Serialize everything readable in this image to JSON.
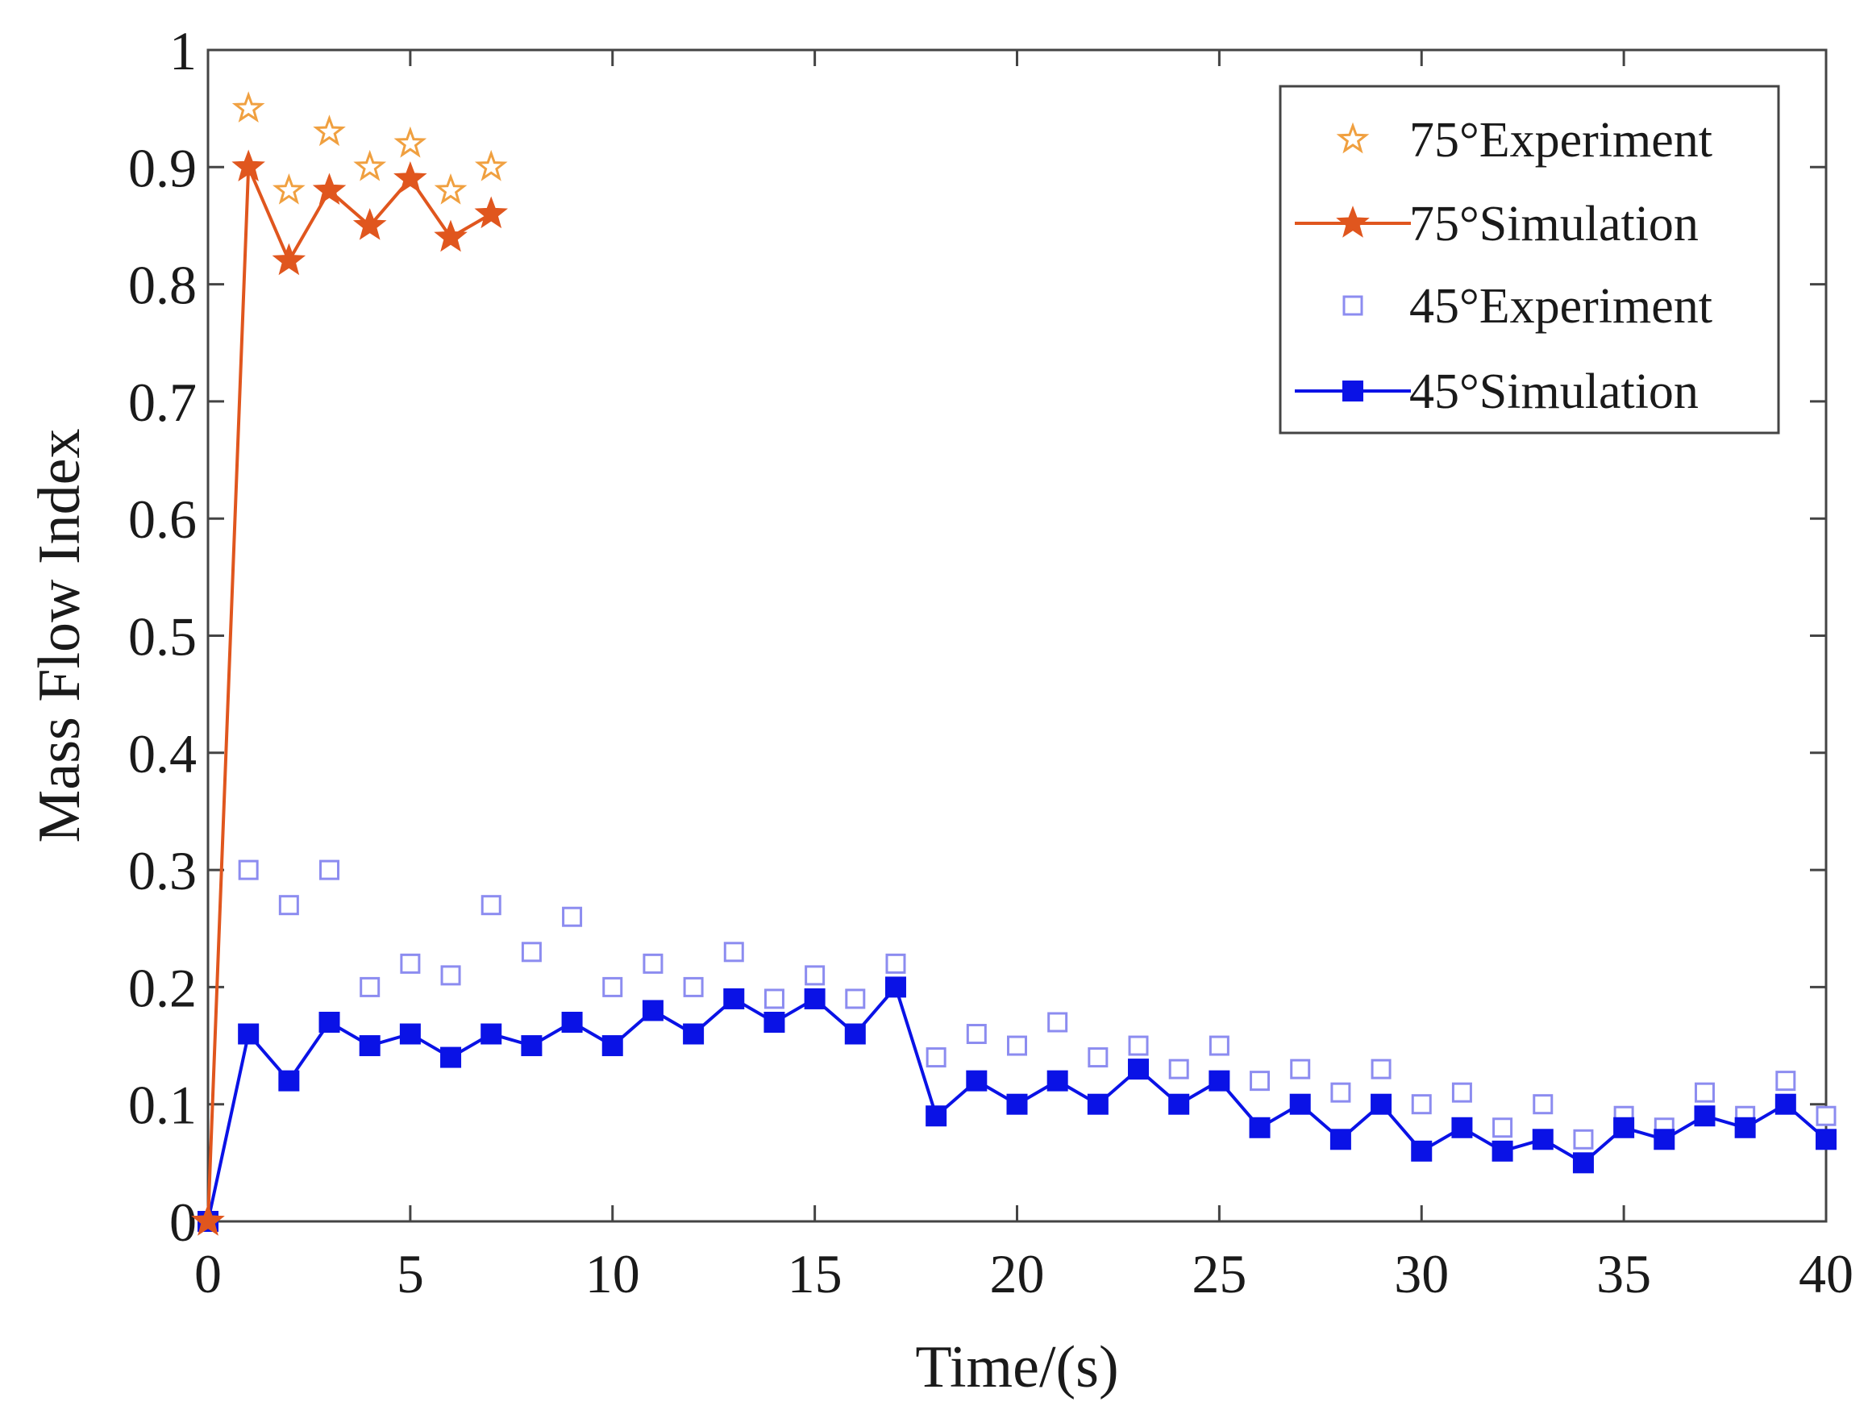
{
  "chart_data": {
    "type": "line",
    "title": "",
    "xlabel": "Time/(s)",
    "ylabel": "Mass Flow Index",
    "xlim": [
      0,
      40
    ],
    "ylim": [
      0,
      1
    ],
    "xticks": [
      0,
      5,
      10,
      15,
      20,
      25,
      30,
      35,
      40
    ],
    "yticks": [
      0,
      0.1,
      0.2,
      0.3,
      0.4,
      0.5,
      0.6,
      0.7,
      0.8,
      0.9,
      1
    ],
    "ytick_labels": [
      "0",
      "0.1",
      "0.2",
      "0.3",
      "0.4",
      "0.5",
      "0.6",
      "0.7",
      "0.8",
      "0.9",
      "1"
    ],
    "grid": false,
    "legend_position": "top-right",
    "series": [
      {
        "name": "75°Experiment",
        "style": "markers",
        "marker": "star-open",
        "color": "#f0a040",
        "x": [
          0,
          1,
          2,
          3,
          4,
          5,
          6,
          7
        ],
        "y": [
          0,
          0.95,
          0.88,
          0.93,
          0.9,
          0.92,
          0.88,
          0.9
        ]
      },
      {
        "name": "75°Simulation",
        "style": "line-markers",
        "marker": "star-filled",
        "color": "#e0561e",
        "x": [
          0,
          1,
          2,
          3,
          4,
          5,
          6,
          7
        ],
        "y": [
          0,
          0.9,
          0.82,
          0.88,
          0.85,
          0.89,
          0.84,
          0.86
        ]
      },
      {
        "name": "45°Experiment",
        "style": "markers",
        "marker": "square-open",
        "color": "#8c8cf0",
        "x": [
          0,
          1,
          2,
          3,
          4,
          5,
          6,
          7,
          8,
          9,
          10,
          11,
          12,
          13,
          14,
          15,
          16,
          17,
          18,
          19,
          20,
          21,
          22,
          23,
          24,
          25,
          26,
          27,
          28,
          29,
          30,
          31,
          32,
          33,
          34,
          35,
          36,
          37,
          38,
          39,
          40
        ],
        "y": [
          0,
          0.3,
          0.27,
          0.3,
          0.2,
          0.22,
          0.21,
          0.27,
          0.23,
          0.26,
          0.2,
          0.22,
          0.2,
          0.23,
          0.19,
          0.21,
          0.19,
          0.22,
          0.14,
          0.16,
          0.15,
          0.17,
          0.14,
          0.15,
          0.13,
          0.15,
          0.12,
          0.13,
          0.11,
          0.13,
          0.1,
          0.11,
          0.08,
          0.1,
          0.07,
          0.09,
          0.08,
          0.11,
          0.09,
          0.12,
          0.09
        ]
      },
      {
        "name": "45°Simulation",
        "style": "line-markers",
        "marker": "square-filled",
        "color": "#0a12e6",
        "x": [
          0,
          1,
          2,
          3,
          4,
          5,
          6,
          7,
          8,
          9,
          10,
          11,
          12,
          13,
          14,
          15,
          16,
          17,
          18,
          19,
          20,
          21,
          22,
          23,
          24,
          25,
          26,
          27,
          28,
          29,
          30,
          31,
          32,
          33,
          34,
          35,
          36,
          37,
          38,
          39,
          40
        ],
        "y": [
          0,
          0.16,
          0.12,
          0.17,
          0.15,
          0.16,
          0.14,
          0.16,
          0.15,
          0.17,
          0.15,
          0.18,
          0.16,
          0.19,
          0.17,
          0.19,
          0.16,
          0.2,
          0.09,
          0.12,
          0.1,
          0.12,
          0.1,
          0.13,
          0.1,
          0.12,
          0.08,
          0.1,
          0.07,
          0.1,
          0.06,
          0.08,
          0.06,
          0.07,
          0.05,
          0.08,
          0.07,
          0.09,
          0.08,
          0.1,
          0.07
        ]
      }
    ]
  }
}
